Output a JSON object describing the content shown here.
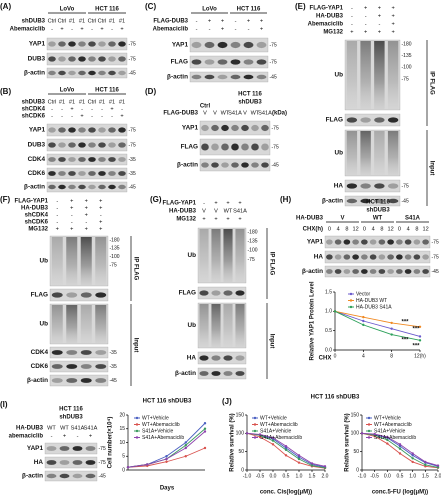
{
  "panels": [
    {
      "label": "(A)",
      "groups": [
        "LoVo",
        "HCT 116"
      ],
      "conditions": [
        {
          "name": "shDUB3",
          "values": [
            "Ctrl",
            "Ctrl",
            "#1",
            "#1",
            "Ctrl",
            "Ctrl",
            "#1",
            "#1"
          ]
        },
        {
          "name": "Abemaciclib",
          "values": [
            "-",
            "+",
            "-",
            "+",
            "-",
            "+",
            "-",
            "+"
          ]
        }
      ],
      "blots": [
        {
          "name": "YAP1",
          "markers": [
            "-75"
          ]
        },
        {
          "name": "DUB3",
          "markers": [
            "-75"
          ]
        },
        {
          "name": "β-actin",
          "markers": [
            "-45"
          ]
        }
      ]
    },
    {
      "label": "(B)",
      "groups": [
        "LoVo",
        "HCT 116"
      ],
      "conditions": [
        {
          "name": "shDUB3",
          "values": [
            "Ctrl",
            "#1",
            "#1",
            "#1",
            "Ctrl",
            "#1",
            "#1",
            "#1"
          ]
        },
        {
          "name": "shCDK4",
          "values": [
            "-",
            "-",
            "+",
            "-",
            "-",
            "-",
            "+",
            "-"
          ]
        },
        {
          "name": "shCDK6",
          "values": [
            "-",
            "-",
            "-",
            "+",
            "-",
            "-",
            "-",
            "+"
          ]
        }
      ],
      "blots": [
        {
          "name": "YAP1",
          "markers": [
            "-75"
          ]
        },
        {
          "name": "DUB3",
          "markers": [
            "-75"
          ]
        },
        {
          "name": "CDK4",
          "markers": [
            "-35"
          ]
        },
        {
          "name": "CDK6",
          "markers": [
            "-35"
          ]
        },
        {
          "name": "β-actin",
          "markers": [
            "-45"
          ]
        }
      ]
    },
    {
      "label": "(C)",
      "groups": [
        "LoVo",
        "HCT 116"
      ],
      "conditions": [
        {
          "name": "FLAG-DUB3",
          "values": [
            "-",
            "+",
            "+",
            "-",
            "+",
            "+"
          ]
        },
        {
          "name": "Abemaciclib",
          "values": [
            "-",
            "-",
            "+",
            "-",
            "-",
            "+"
          ]
        }
      ],
      "blots": [
        {
          "name": "YAP1",
          "markers": [
            "-75"
          ]
        },
        {
          "name": "FLAG",
          "markers": [
            "-75"
          ]
        },
        {
          "name": "β-actin",
          "markers": [
            "-45"
          ]
        }
      ]
    },
    {
      "label": "(D)",
      "texts": [
        "HCT 116",
        "shDUB3",
        "Ctrl",
        "(kDa)"
      ],
      "conditions": [
        {
          "name": "FLAG-DUB3",
          "values": [
            "V",
            "V",
            "WT",
            "S41A",
            "V",
            "WT",
            "S41A"
          ]
        }
      ],
      "blots": [
        {
          "name": "YAP1",
          "markers": [
            "-75"
          ]
        },
        {
          "name": "FLAG",
          "markers": [
            "-75"
          ]
        },
        {
          "name": "β-actin",
          "markers": [
            "-45"
          ]
        }
      ]
    },
    {
      "label": "(E)",
      "conditions": [
        {
          "name": "FLAG-YAP1",
          "values": [
            "-",
            "+",
            "+",
            "+"
          ]
        },
        {
          "name": "HA-DUB3",
          "values": [
            "-",
            "-",
            "+",
            "+"
          ]
        },
        {
          "name": "Abemaciclib",
          "values": [
            "-",
            "-",
            "-",
            "+"
          ]
        },
        {
          "name": "MG132",
          "values": [
            "+",
            "+",
            "+",
            "+"
          ]
        }
      ],
      "blots": [
        {
          "name": "Ub",
          "markers": [
            "-180",
            "-135",
            "-100",
            "-75"
          ]
        },
        {
          "name": "FLAG",
          "markers": []
        },
        {
          "name": "Ub",
          "markers": []
        },
        {
          "name": "HA",
          "markers": [
            "-75"
          ]
        },
        {
          "name": "β-actin",
          "markers": [
            "-45"
          ]
        }
      ],
      "sides": [
        "IP FLAG",
        "Input"
      ]
    },
    {
      "label": "(F)",
      "conditions": [
        {
          "name": "FLAG-YAP1",
          "values": [
            "-",
            "+",
            "+",
            "+"
          ]
        },
        {
          "name": "HA-DUB3",
          "values": [
            "-",
            "+",
            "+",
            "+"
          ]
        },
        {
          "name": "shCDK4",
          "values": [
            "-",
            "-",
            "+",
            "-"
          ]
        },
        {
          "name": "shCDK6",
          "values": [
            "-",
            "-",
            "-",
            "+"
          ]
        },
        {
          "name": "MG132",
          "values": [
            "+",
            "+",
            "+",
            "+"
          ]
        }
      ],
      "blots": [
        {
          "name": "Ub",
          "markers": [
            "-180",
            "-135",
            "-100",
            "-75"
          ]
        },
        {
          "name": "FLAG",
          "markers": []
        },
        {
          "name": "Ub",
          "markers": []
        },
        {
          "name": "CDK4",
          "markers": [
            "-35"
          ]
        },
        {
          "name": "CDK6",
          "markers": [
            "-35"
          ]
        },
        {
          "name": "β-actin",
          "markers": [
            "-45"
          ]
        }
      ],
      "sides": [
        "IP FLAG",
        "Input"
      ]
    },
    {
      "label": "(G)",
      "conditions": [
        {
          "name": "FLAG-YAP1",
          "values": [
            "-",
            "+",
            "+",
            "+"
          ]
        },
        {
          "name": "HA-DUB3",
          "values": [
            "V",
            "V",
            "WT",
            "S41A"
          ]
        },
        {
          "name": "MG132",
          "values": [
            "+",
            "+",
            "+",
            "+"
          ]
        }
      ],
      "blots": [
        {
          "name": "Ub",
          "markers": [
            "-180",
            "-135",
            "-100",
            "-75"
          ]
        },
        {
          "name": "FLAG",
          "markers": []
        },
        {
          "name": "Ub",
          "markers": []
        },
        {
          "name": "HA",
          "markers": []
        },
        {
          "name": "β-actin",
          "markers": []
        }
      ],
      "sides": [
        "IP FLAG",
        "Input"
      ]
    },
    {
      "label": "(H)",
      "groups": [
        "V",
        "WT",
        "S41A"
      ],
      "texts": [
        "HCT 116",
        "shDUB3",
        "HA-DUB3"
      ],
      "conditions": [
        {
          "name": "CHX(h)",
          "values": [
            "0",
            "4",
            "8",
            "12",
            "0",
            "4",
            "8",
            "12",
            "0",
            "4",
            "8",
            "12"
          ]
        }
      ],
      "blots": [
        {
          "name": "YAP1",
          "markers": [
            "-75"
          ]
        },
        {
          "name": "HA",
          "markers": [
            "-75"
          ]
        },
        {
          "name": "β-actin",
          "markers": [
            "-45"
          ]
        }
      ]
    },
    {
      "label": "(I)",
      "texts": [
        "HCT 116",
        "shDUB3"
      ],
      "conditions": [
        {
          "name": "HA-DUB3",
          "values": [
            "WT",
            "WT",
            "S41A",
            "S41A"
          ]
        },
        {
          "name": "abemaciclib",
          "values": [
            "-",
            "+",
            "-",
            "+"
          ]
        }
      ],
      "blots": [
        {
          "name": "YAP1",
          "markers": [
            "-75"
          ]
        },
        {
          "name": "HA",
          "markers": [
            "-75"
          ]
        },
        {
          "name": "β-actin",
          "markers": [
            "-45"
          ]
        }
      ]
    }
  ],
  "chart_data": [
    {
      "type": "line",
      "ylabel": "Relative YAP1 Protein Level",
      "xlabel": "CHX",
      "x": [
        0,
        4,
        8,
        12
      ],
      "xlim": [
        0,
        12
      ],
      "xticks": [
        0,
        4,
        8,
        {
          "value": 12,
          "label": "12(h)"
        }
      ],
      "ylim": [
        0,
        1.5
      ],
      "yticks": [
        {
          "value": 0,
          "label": "0.0"
        },
        {
          "value": 0.5,
          "label": "0.5"
        },
        {
          "value": 1,
          "label": "1.0"
        },
        {
          "value": 1.5,
          "label": "1.5"
        }
      ],
      "series": [
        {
          "name": "Vector",
          "color": "#6a5acd",
          "values": [
            1.0,
            0.75,
            0.55,
            0.35
          ]
        },
        {
          "name": "HA-DUB3 WT",
          "color": "#f08a24",
          "values": [
            1.0,
            0.85,
            0.7,
            0.6
          ]
        },
        {
          "name": "HA-DUB3 S41A",
          "color": "#2ca05a",
          "values": [
            1.0,
            0.65,
            0.4,
            0.25
          ]
        }
      ],
      "annotations": [
        "***",
        "***",
        "***",
        "***"
      ]
    },
    {
      "type": "line",
      "title": "HCT 116 shDUB3",
      "ylabel": "Cell number(×10⁴)",
      "xlabel": "Days",
      "x": [
        0,
        2,
        4,
        6,
        8
      ],
      "xlim": [
        0,
        8
      ],
      "ylim": [
        0,
        20
      ],
      "yticks": [
        0,
        5,
        10,
        15,
        20
      ],
      "series": [
        {
          "name": "WT+Vehicle",
          "color": "#4a5fc1",
          "values": [
            1,
            2,
            5,
            10,
            17
          ]
        },
        {
          "name": "WT+Abemaciclib",
          "color": "#d9534f",
          "values": [
            1,
            1.5,
            3,
            5,
            8
          ]
        },
        {
          "name": "S41A+Vehicle",
          "color": "#3c9a5f",
          "values": [
            1,
            2,
            4,
            9,
            15
          ]
        },
        {
          "name": "S41A+Abemaciclib",
          "color": "#8e44ad",
          "values": [
            1,
            2,
            4,
            8,
            14
          ]
        }
      ]
    },
    {
      "type": "line",
      "label": "(J)",
      "title": "HCT 116 shDUB3",
      "ylabel": "Relative survival (%)",
      "xlabel": "conc. Cis(log(μM))",
      "x": [
        -1,
        -0.5,
        0,
        0.5,
        1,
        1.5,
        2
      ],
      "xlim": [
        -1,
        2
      ],
      "xticks": [
        {
          "value": -1,
          "label": "-1.0"
        },
        {
          "value": -0.5,
          "label": "-0.5"
        },
        {
          "value": 0,
          "label": "0.0"
        },
        {
          "value": 0.5,
          "label": "0.5"
        },
        {
          "value": 1,
          "label": "1.0"
        },
        {
          "value": 1.5,
          "label": "1.5"
        },
        {
          "value": 2,
          "label": "2.0"
        }
      ],
      "ylim": [
        0,
        150
      ],
      "yticks": [
        0,
        50,
        100,
        150
      ],
      "series": [
        {
          "name": "WT+Vehicle",
          "color": "#4a5fc1",
          "values": [
            100,
            95,
            85,
            60,
            35,
            15,
            8
          ]
        },
        {
          "name": "WT+Abemaciclib",
          "color": "#d9534f",
          "values": [
            100,
            90,
            70,
            40,
            20,
            10,
            5
          ]
        },
        {
          "name": "S41A+Vehicle",
          "color": "#3c9a5f",
          "values": [
            100,
            95,
            80,
            55,
            30,
            12,
            6
          ]
        },
        {
          "name": "S41A+Abemaciclib",
          "color": "#8e44ad",
          "values": [
            100,
            97,
            88,
            65,
            40,
            18,
            10
          ]
        }
      ]
    },
    {
      "type": "line",
      "ylabel": "Relative survival (%)",
      "xlabel": "conc.5-FU (log(μM))",
      "x": [
        -1,
        -0.5,
        0,
        0.5,
        1,
        1.5,
        2
      ],
      "xlim": [
        -1,
        2
      ],
      "xticks": [
        {
          "value": -1,
          "label": "-1.0"
        },
        {
          "value": -0.5,
          "label": "-0.5"
        },
        {
          "value": 0,
          "label": "0.0"
        },
        {
          "value": 0.5,
          "label": "0.5"
        },
        {
          "value": 1,
          "label": "1.0"
        },
        {
          "value": 1.5,
          "label": "1.5"
        },
        {
          "value": 2,
          "label": "2.0"
        }
      ],
      "ylim": [
        0,
        150
      ],
      "yticks": [
        0,
        50,
        100,
        150
      ],
      "series": [
        {
          "name": "WT+Vehicle",
          "color": "#4a5fc1",
          "values": [
            100,
            96,
            88,
            65,
            40,
            20,
            10
          ]
        },
        {
          "name": "WT+Abemaciclib",
          "color": "#d9534f",
          "values": [
            100,
            92,
            72,
            45,
            22,
            10,
            6
          ]
        },
        {
          "name": "S41A+Vehicle",
          "color": "#3c9a5f",
          "values": [
            100,
            95,
            82,
            58,
            32,
            14,
            7
          ]
        },
        {
          "name": "S41A+Abemaciclib",
          "color": "#8e44ad",
          "values": [
            100,
            98,
            90,
            70,
            45,
            22,
            12
          ]
        }
      ]
    }
  ]
}
